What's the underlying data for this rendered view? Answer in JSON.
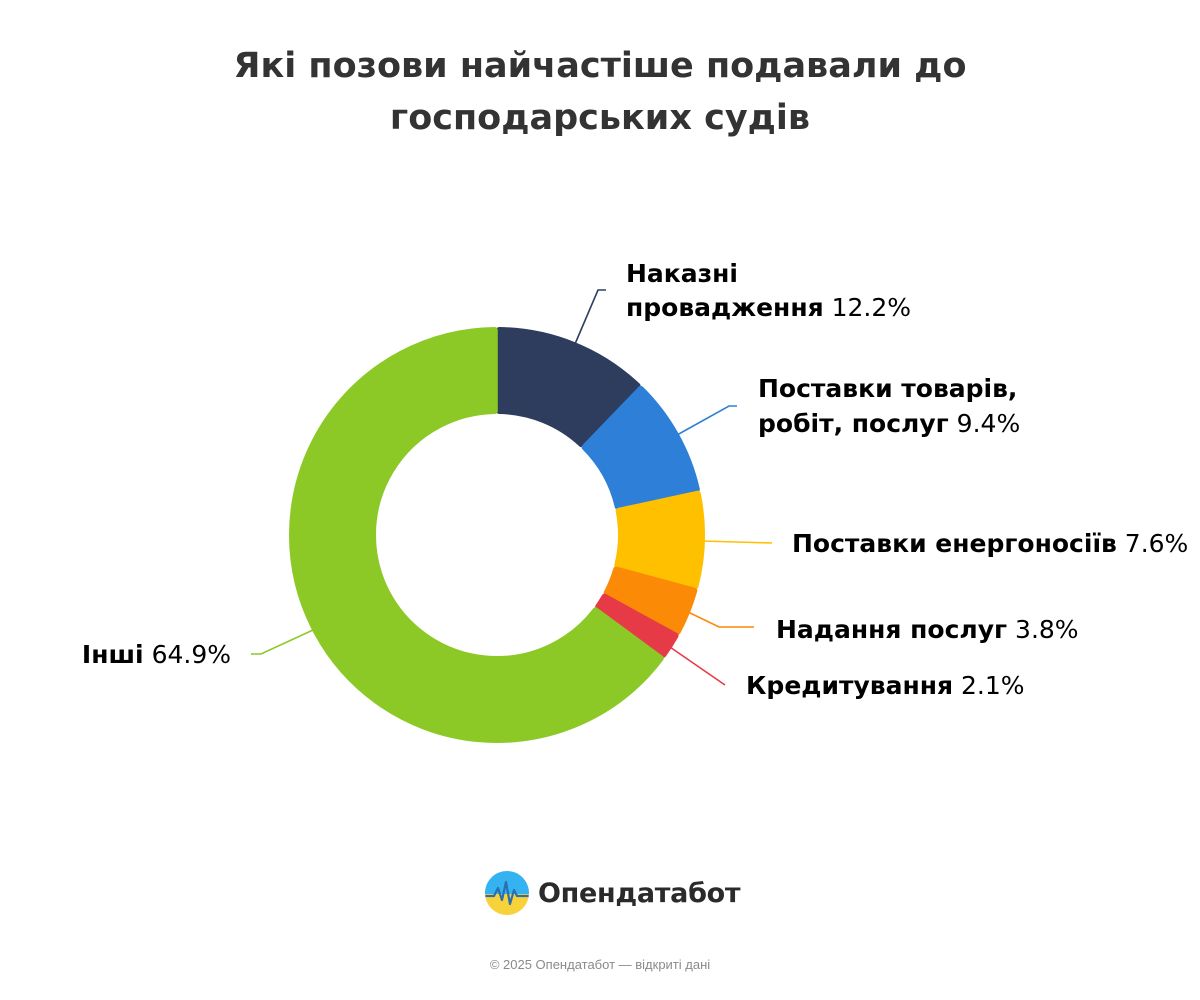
{
  "chart_data": {
    "type": "pie",
    "variant": "donut",
    "title": "Які позови найчастіше подавали до господарських судів",
    "title_lines": [
      "Які позови найчастіше подавали до",
      "господарських судів"
    ],
    "categories": [
      "Наказні провадження",
      "Поставки товарів, робіт, послуг",
      "Поставки енергоносіїв",
      "Надання послуг",
      "Кредитування",
      "Інші"
    ],
    "values": [
      12.2,
      9.4,
      7.6,
      3.8,
      2.1,
      64.9
    ],
    "unit": "%",
    "colors": [
      "#2e3d5e",
      "#2e7fd8",
      "#ffc000",
      "#fb8a06",
      "#e63b47",
      "#8cc927"
    ],
    "slices": [
      {
        "name_lines": [
          "Наказні",
          "провадження"
        ],
        "value_text": "12.2%",
        "icon": "none"
      },
      {
        "name_lines": [
          "Поставки товарів,",
          "робіт, послуг"
        ],
        "value_text": "9.4%",
        "icon": "none"
      },
      {
        "name_lines": [
          "Поставки енергоносіїв"
        ],
        "value_text": "7.6%",
        "icon": "none"
      },
      {
        "name_lines": [
          "Надання послуг"
        ],
        "value_text": "3.8%",
        "icon": "none"
      },
      {
        "name_lines": [
          "Кредитування"
        ],
        "value_text": "2.1%",
        "icon": "none"
      },
      {
        "name_lines": [
          "Інші"
        ],
        "value_text": "64.9%",
        "icon": "none"
      }
    ],
    "legend": "none",
    "data_labels": "outside-with-connectors"
  },
  "brand": {
    "name": "Опендатабот",
    "logo_icon": "opendatabot-logo-icon",
    "colors": {
      "blue": "#35b3f0",
      "yellow": "#f7d23a",
      "line": "#2a6fb0"
    }
  },
  "footer": {
    "copyright": "© 2025 Опендатабот — відкриті дані"
  }
}
